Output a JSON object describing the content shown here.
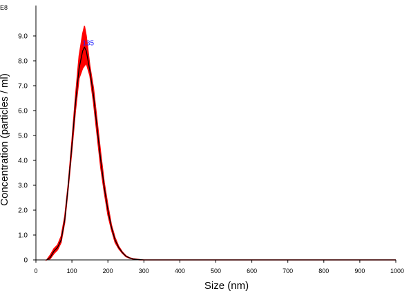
{
  "chart_data": {
    "type": "line",
    "xlabel": "Size (nm)",
    "ylabel": "Concentration (particles / ml)",
    "y_exponent_label": "E8",
    "xlim": [
      0,
      1000
    ],
    "ylim": [
      0,
      9.8
    ],
    "x_ticks": [
      "0",
      "100",
      "200",
      "300",
      "400",
      "500",
      "600",
      "700",
      "800",
      "900",
      "1000"
    ],
    "y_ticks": [
      "0",
      "1.0",
      "2.0",
      "3.0",
      "4.0",
      "5.0",
      "6.0",
      "7.0",
      "8.0",
      "9.0"
    ],
    "peak_label": "135",
    "peak": {
      "x": 135,
      "y": 8.6
    },
    "grid": false,
    "colors": {
      "mean_line": "#000000",
      "error_band": "#ff0000",
      "peak_label": "#2222ff"
    },
    "series": [
      {
        "x": [
          30,
          40,
          50,
          60,
          70,
          80,
          90,
          100,
          110,
          120,
          130,
          135,
          140,
          150,
          160,
          170,
          180,
          190,
          200,
          210,
          220,
          230,
          240,
          250,
          260,
          270,
          280,
          290,
          300,
          320,
          350,
          400,
          500,
          600,
          700,
          800,
          900,
          1000
        ],
        "y": [
          0,
          0.1,
          0.35,
          0.5,
          0.8,
          1.6,
          3.0,
          4.6,
          6.3,
          7.7,
          8.4,
          8.55,
          8.4,
          7.6,
          6.6,
          5.3,
          4.0,
          2.9,
          2.0,
          1.3,
          0.8,
          0.5,
          0.3,
          0.15,
          0.08,
          0.04,
          0.02,
          0.01,
          0,
          0,
          0,
          0,
          0,
          0,
          0,
          0,
          0,
          0
        ],
        "lower": [
          0,
          0.05,
          0.25,
          0.4,
          0.7,
          1.5,
          2.9,
          4.4,
          6.0,
          7.3,
          7.7,
          7.8,
          7.9,
          7.4,
          6.3,
          5.0,
          3.7,
          2.7,
          1.8,
          1.2,
          0.7,
          0.45,
          0.27,
          0.13,
          0.07,
          0.03,
          0.01,
          0,
          0,
          0,
          0,
          0,
          0,
          0,
          0,
          0,
          0,
          0
        ],
        "upper": [
          0,
          0.2,
          0.45,
          0.6,
          0.95,
          1.75,
          3.1,
          4.8,
          6.6,
          8.2,
          9.1,
          9.4,
          9.0,
          7.8,
          6.9,
          5.6,
          4.3,
          3.1,
          2.2,
          1.4,
          0.9,
          0.55,
          0.33,
          0.17,
          0.09,
          0.05,
          0.03,
          0.01,
          0,
          0,
          0,
          0,
          0,
          0,
          0,
          0,
          0,
          0
        ]
      }
    ]
  }
}
